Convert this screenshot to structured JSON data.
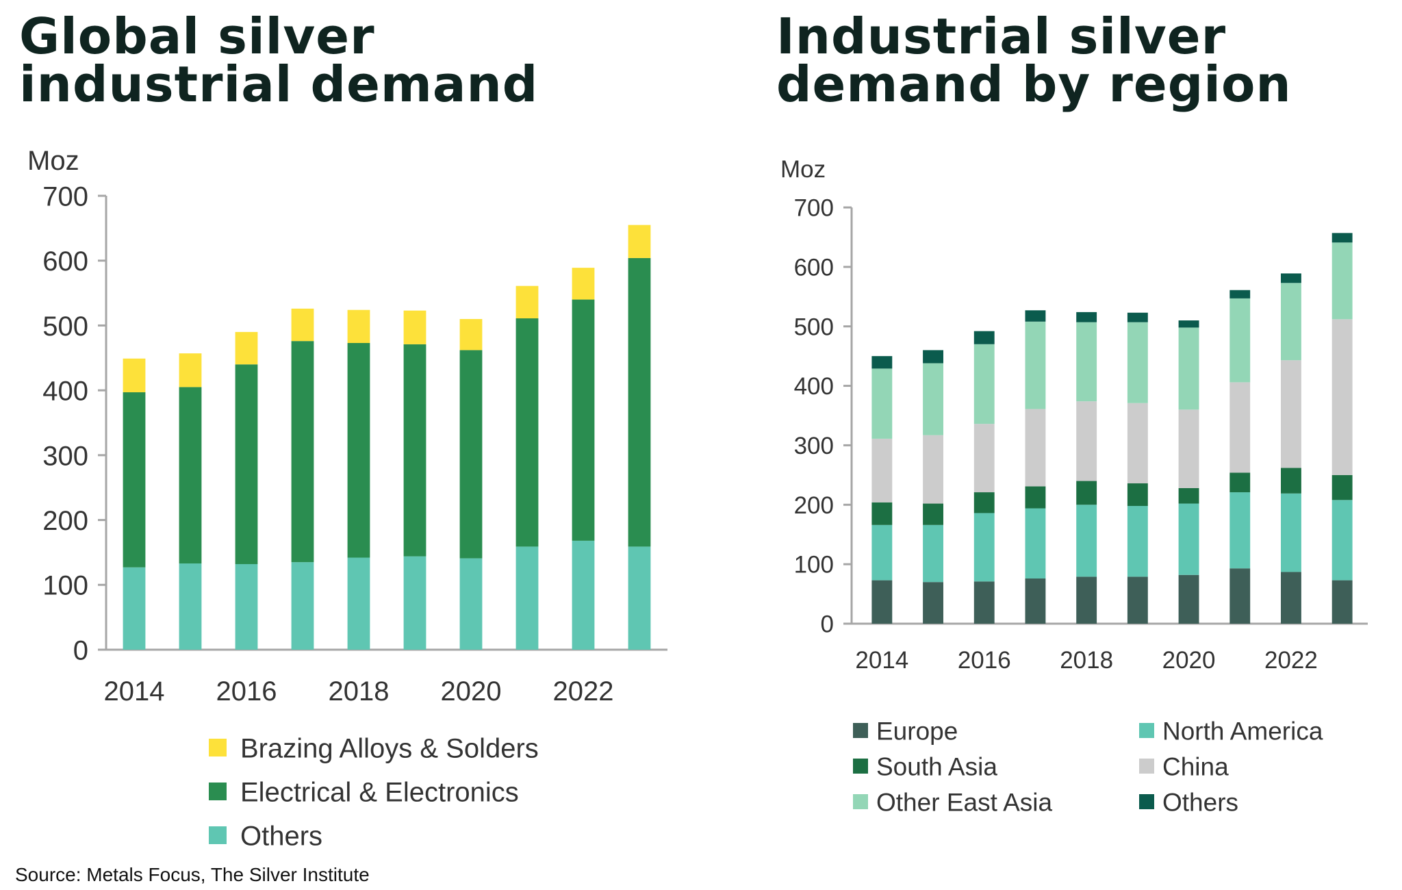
{
  "titles": {
    "left_line1": "Global silver",
    "left_line2": "industrial demand",
    "right_line1": "Industrial silver",
    "right_line2": "demand by region"
  },
  "source": "Source: Metals Focus, The Silver Institute",
  "chart_data": [
    {
      "type": "bar",
      "stacked": true,
      "title": "Global silver industrial demand",
      "ylabel": "Moz",
      "ylim": [
        0,
        700
      ],
      "yticks": [
        0,
        100,
        200,
        300,
        400,
        500,
        600,
        700
      ],
      "x": [
        2014,
        2015,
        2016,
        2017,
        2018,
        2019,
        2020,
        2021,
        2022,
        2023
      ],
      "xtick_labels": [
        "2014",
        "2016",
        "2018",
        "2020",
        "2022"
      ],
      "grid": false,
      "legend_position": "bottom",
      "series": [
        {
          "name": "Others",
          "color": "#5fc6b2",
          "values": [
            127,
            133,
            132,
            135,
            142,
            144,
            141,
            159,
            168,
            159
          ]
        },
        {
          "name": "Electrical & Electronics",
          "color": "#2a8d50",
          "values": [
            270,
            272,
            308,
            341,
            331,
            327,
            321,
            352,
            372,
            445
          ]
        },
        {
          "name": "Brazing Alloys & Solders",
          "color": "#fde13a",
          "values": [
            52,
            52,
            50,
            50,
            51,
            52,
            48,
            50,
            49,
            51
          ]
        }
      ],
      "legend_order": [
        "Brazing Alloys & Solders",
        "Electrical & Electronics",
        "Others"
      ]
    },
    {
      "type": "bar",
      "stacked": true,
      "title": "Industrial silver demand by region",
      "ylabel": "Moz",
      "ylim": [
        0,
        700
      ],
      "yticks": [
        0,
        100,
        200,
        300,
        400,
        500,
        600,
        700
      ],
      "x": [
        2014,
        2015,
        2016,
        2017,
        2018,
        2019,
        2020,
        2021,
        2022,
        2023
      ],
      "xtick_labels": [
        "2014",
        "2016",
        "2018",
        "2020",
        "2022"
      ],
      "grid": false,
      "legend_position": "bottom",
      "series": [
        {
          "name": "Europe",
          "color": "#3e5f58",
          "values": [
            73,
            70,
            71,
            76,
            79,
            79,
            82,
            93,
            87,
            73
          ]
        },
        {
          "name": "North America",
          "color": "#5fc6b2",
          "values": [
            93,
            96,
            115,
            118,
            121,
            119,
            120,
            128,
            132,
            135
          ]
        },
        {
          "name": "South Asia",
          "color": "#1c6f43",
          "values": [
            38,
            36,
            35,
            37,
            40,
            38,
            26,
            33,
            43,
            42
          ]
        },
        {
          "name": "China",
          "color": "#cccccc",
          "values": [
            107,
            115,
            115,
            130,
            134,
            135,
            132,
            152,
            181,
            262
          ]
        },
        {
          "name": "Other East Asia",
          "color": "#93d6b6",
          "values": [
            118,
            121,
            134,
            147,
            133,
            136,
            138,
            141,
            130,
            129
          ]
        },
        {
          "name": "Others",
          "color": "#0b5b4d",
          "values": [
            21,
            22,
            22,
            19,
            17,
            16,
            12,
            14,
            16,
            16
          ]
        }
      ],
      "legend_order": [
        "Europe",
        "North America",
        "South Asia",
        "China",
        "Other East Asia",
        "Others"
      ]
    }
  ]
}
